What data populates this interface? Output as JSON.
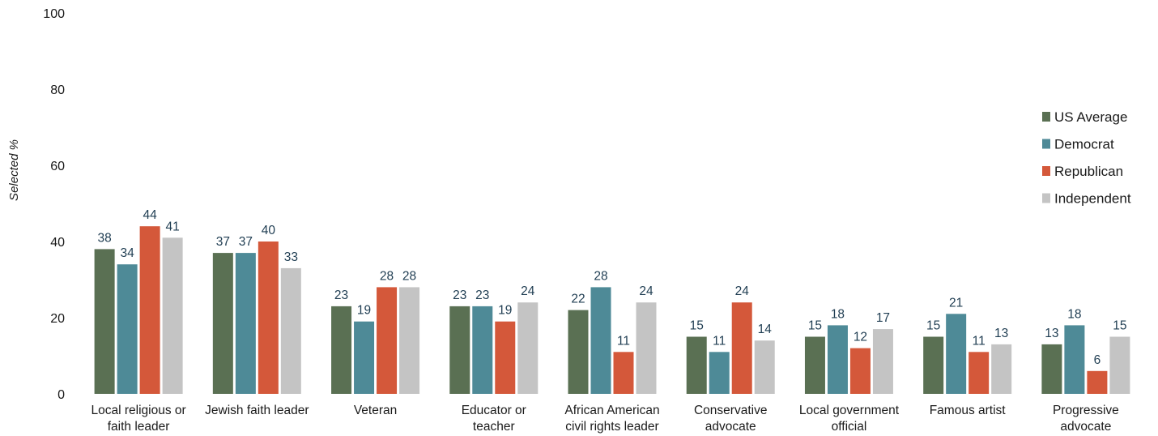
{
  "chart_data": {
    "type": "bar",
    "title": "",
    "xlabel": "",
    "ylabel": "Selected %",
    "ylim": [
      0,
      100
    ],
    "yticks": [
      0,
      20,
      40,
      60,
      80,
      100
    ],
    "grid": false,
    "legend_position": "right",
    "categories": [
      [
        "Local religious or",
        "faith leader"
      ],
      [
        "Jewish faith leader"
      ],
      [
        "Veteran"
      ],
      [
        "Educator or",
        "teacher"
      ],
      [
        "African American",
        "civil rights leader"
      ],
      [
        "Conservative",
        "advocate"
      ],
      [
        "Local government",
        "official"
      ],
      [
        "Famous artist"
      ],
      [
        "Progressive",
        "advocate"
      ]
    ],
    "series": [
      {
        "name": "US Average",
        "color": "#5a7053",
        "values": [
          38,
          37,
          23,
          23,
          22,
          15,
          15,
          15,
          13
        ]
      },
      {
        "name": "Democrat",
        "color": "#4e8a97",
        "values": [
          34,
          37,
          19,
          23,
          28,
          11,
          18,
          21,
          18
        ]
      },
      {
        "name": "Republican",
        "color": "#d4583a",
        "values": [
          44,
          40,
          28,
          19,
          11,
          24,
          12,
          11,
          6
        ]
      },
      {
        "name": "Independent",
        "color": "#c4c4c4",
        "values": [
          41,
          33,
          28,
          24,
          24,
          14,
          17,
          13,
          15
        ]
      }
    ]
  }
}
